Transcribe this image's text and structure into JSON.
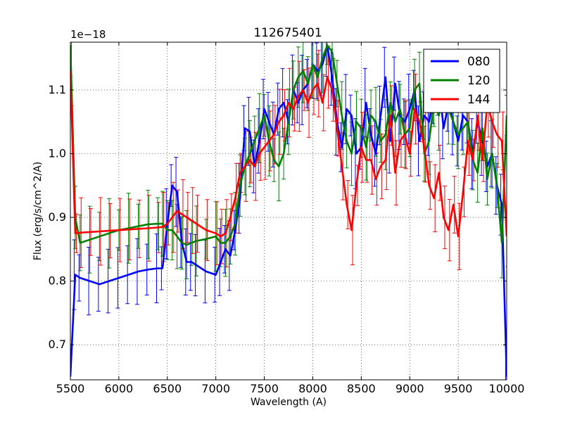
{
  "chart_data": {
    "type": "line",
    "title": "112675401",
    "xlabel": "Wavelength (A)",
    "ylabel": "Flux (erg/s/cm^2/A)",
    "y_offset_label": "1e−18",
    "xlim": [
      5500,
      10000
    ],
    "ylim": [
      0.645,
      1.175
    ],
    "x_ticks": [
      5500,
      6000,
      6500,
      7000,
      7500,
      8000,
      8500,
      9000,
      9500,
      10000
    ],
    "y_ticks": [
      0.7,
      0.8,
      0.9,
      1.0,
      1.1
    ],
    "x_tick_labels": [
      "5500",
      "6000",
      "6500",
      "7000",
      "7500",
      "8000",
      "8500",
      "9000",
      "9500",
      "10000"
    ],
    "y_tick_labels": [
      "0.7",
      "0.8",
      "0.9",
      "1.0",
      "1.1"
    ],
    "grid": true,
    "legend_position": "top-right",
    "series": [
      {
        "name": "080",
        "color": "#0000ff",
        "x": [
          5500,
          5550,
          5600,
          5700,
          5800,
          5900,
          6000,
          6100,
          6200,
          6300,
          6400,
          6450,
          6500,
          6550,
          6600,
          6650,
          6700,
          6750,
          6800,
          6900,
          7000,
          7050,
          7100,
          7150,
          7200,
          7250,
          7300,
          7350,
          7400,
          7450,
          7500,
          7550,
          7600,
          7650,
          7700,
          7750,
          7800,
          7850,
          7900,
          7950,
          8000,
          8050,
          8100,
          8150,
          8200,
          8250,
          8300,
          8350,
          8400,
          8450,
          8500,
          8550,
          8600,
          8650,
          8700,
          8750,
          8800,
          8850,
          8900,
          8950,
          9000,
          9050,
          9100,
          9150,
          9200,
          9250,
          9300,
          9350,
          9400,
          9450,
          9500,
          9550,
          9600,
          9650,
          9700,
          9750,
          9800,
          9850,
          9900,
          9950,
          10000
        ],
        "y": [
          0.65,
          0.81,
          0.805,
          0.8,
          0.795,
          0.8,
          0.805,
          0.81,
          0.815,
          0.818,
          0.82,
          0.82,
          0.89,
          0.95,
          0.94,
          0.86,
          0.83,
          0.83,
          0.825,
          0.815,
          0.81,
          0.83,
          0.85,
          0.84,
          0.88,
          0.93,
          1.04,
          1.035,
          0.98,
          1.02,
          1.07,
          1.05,
          1.03,
          1.07,
          1.08,
          1.05,
          1.1,
          1.08,
          1.1,
          1.11,
          1.14,
          1.13,
          1.14,
          1.17,
          1.12,
          1.05,
          1.01,
          1.07,
          1.06,
          1.0,
          1.01,
          1.08,
          1.03,
          1.0,
          1.06,
          1.12,
          1.02,
          1.11,
          1.06,
          1.05,
          1.07,
          1.1,
          1.02,
          1.06,
          1.05,
          1.09,
          1.11,
          1.04,
          1.08,
          1.05,
          1.02,
          1.06,
          1.05,
          1.0,
          1.05,
          1.02,
          0.98,
          1.0,
          0.95,
          0.92,
          0.65
        ]
      },
      {
        "name": "120",
        "color": "#008000",
        "x": [
          5500,
          5550,
          5600,
          5700,
          5800,
          5900,
          6000,
          6100,
          6200,
          6300,
          6400,
          6450,
          6500,
          6550,
          6600,
          6650,
          6700,
          6750,
          6800,
          6900,
          7000,
          7050,
          7100,
          7150,
          7200,
          7250,
          7300,
          7350,
          7400,
          7450,
          7500,
          7550,
          7600,
          7650,
          7700,
          7750,
          7800,
          7850,
          7900,
          7950,
          8000,
          8050,
          8100,
          8150,
          8200,
          8250,
          8300,
          8350,
          8400,
          8450,
          8500,
          8550,
          8600,
          8650,
          8700,
          8750,
          8800,
          8850,
          8900,
          8950,
          9000,
          9050,
          9100,
          9150,
          9200,
          9250,
          9300,
          9350,
          9400,
          9450,
          9500,
          9550,
          9600,
          9650,
          9700,
          9750,
          9800,
          9850,
          9900,
          9950,
          10000
        ],
        "y": [
          1.17,
          0.9,
          0.86,
          0.865,
          0.87,
          0.875,
          0.88,
          0.883,
          0.886,
          0.889,
          0.89,
          0.89,
          0.88,
          0.88,
          0.87,
          0.86,
          0.857,
          0.86,
          0.863,
          0.866,
          0.87,
          0.86,
          0.86,
          0.87,
          0.89,
          0.95,
          0.98,
          1.0,
          1.02,
          1.04,
          1.06,
          1.02,
          0.99,
          0.98,
          1.0,
          1.05,
          1.1,
          1.12,
          1.13,
          1.11,
          1.14,
          1.12,
          1.15,
          1.17,
          1.16,
          1.11,
          1.06,
          1.02,
          1.0,
          1.05,
          1.04,
          1.01,
          1.06,
          1.05,
          1.02,
          1.03,
          1.08,
          1.05,
          1.07,
          1.03,
          1.04,
          1.1,
          1.11,
          1.0,
          1.02,
          1.08,
          1.06,
          1.1,
          1.07,
          1.05,
          1.03,
          1.04,
          1.05,
          0.99,
          0.97,
          1.04,
          0.96,
          1.0,
          0.95,
          0.86,
          1.06
        ]
      },
      {
        "name": "144",
        "color": "#ff0000",
        "x": [
          5500,
          5550,
          5600,
          5700,
          5800,
          5900,
          6000,
          6100,
          6200,
          6300,
          6400,
          6450,
          6500,
          6550,
          6600,
          6650,
          6700,
          6750,
          6800,
          6900,
          7000,
          7050,
          7100,
          7150,
          7200,
          7250,
          7300,
          7350,
          7400,
          7450,
          7500,
          7550,
          7600,
          7650,
          7700,
          7750,
          7800,
          7850,
          7900,
          7950,
          8000,
          8050,
          8100,
          8150,
          8200,
          8250,
          8300,
          8350,
          8400,
          8450,
          8500,
          8550,
          8600,
          8650,
          8700,
          8750,
          8800,
          8850,
          8900,
          8950,
          9000,
          9050,
          9100,
          9150,
          9200,
          9250,
          9300,
          9350,
          9400,
          9450,
          9500,
          9550,
          9600,
          9650,
          9700,
          9750,
          9800,
          9850,
          9900,
          9950,
          10000
        ],
        "y": [
          1.13,
          0.875,
          0.876,
          0.877,
          0.878,
          0.879,
          0.88,
          0.881,
          0.882,
          0.883,
          0.884,
          0.885,
          0.89,
          0.9,
          0.91,
          0.905,
          0.9,
          0.895,
          0.89,
          0.88,
          0.875,
          0.87,
          0.875,
          0.9,
          0.93,
          0.97,
          0.98,
          0.99,
          0.98,
          1.0,
          1.01,
          1.02,
          1.03,
          1.05,
          1.06,
          1.08,
          1.07,
          1.09,
          1.1,
          1.08,
          1.1,
          1.11,
          1.08,
          1.12,
          1.1,
          1.04,
          0.98,
          0.92,
          0.88,
          0.95,
          1.01,
          0.99,
          0.99,
          0.96,
          0.98,
          0.99,
          1.06,
          0.97,
          1.02,
          1.03,
          1.0,
          1.07,
          1.05,
          1.01,
          0.95,
          0.93,
          0.97,
          0.9,
          0.88,
          0.92,
          0.87,
          0.94,
          1.02,
          0.99,
          1.06,
          0.99,
          1.08,
          1.05,
          1.03,
          1.02,
          0.87
        ]
      }
    ]
  }
}
